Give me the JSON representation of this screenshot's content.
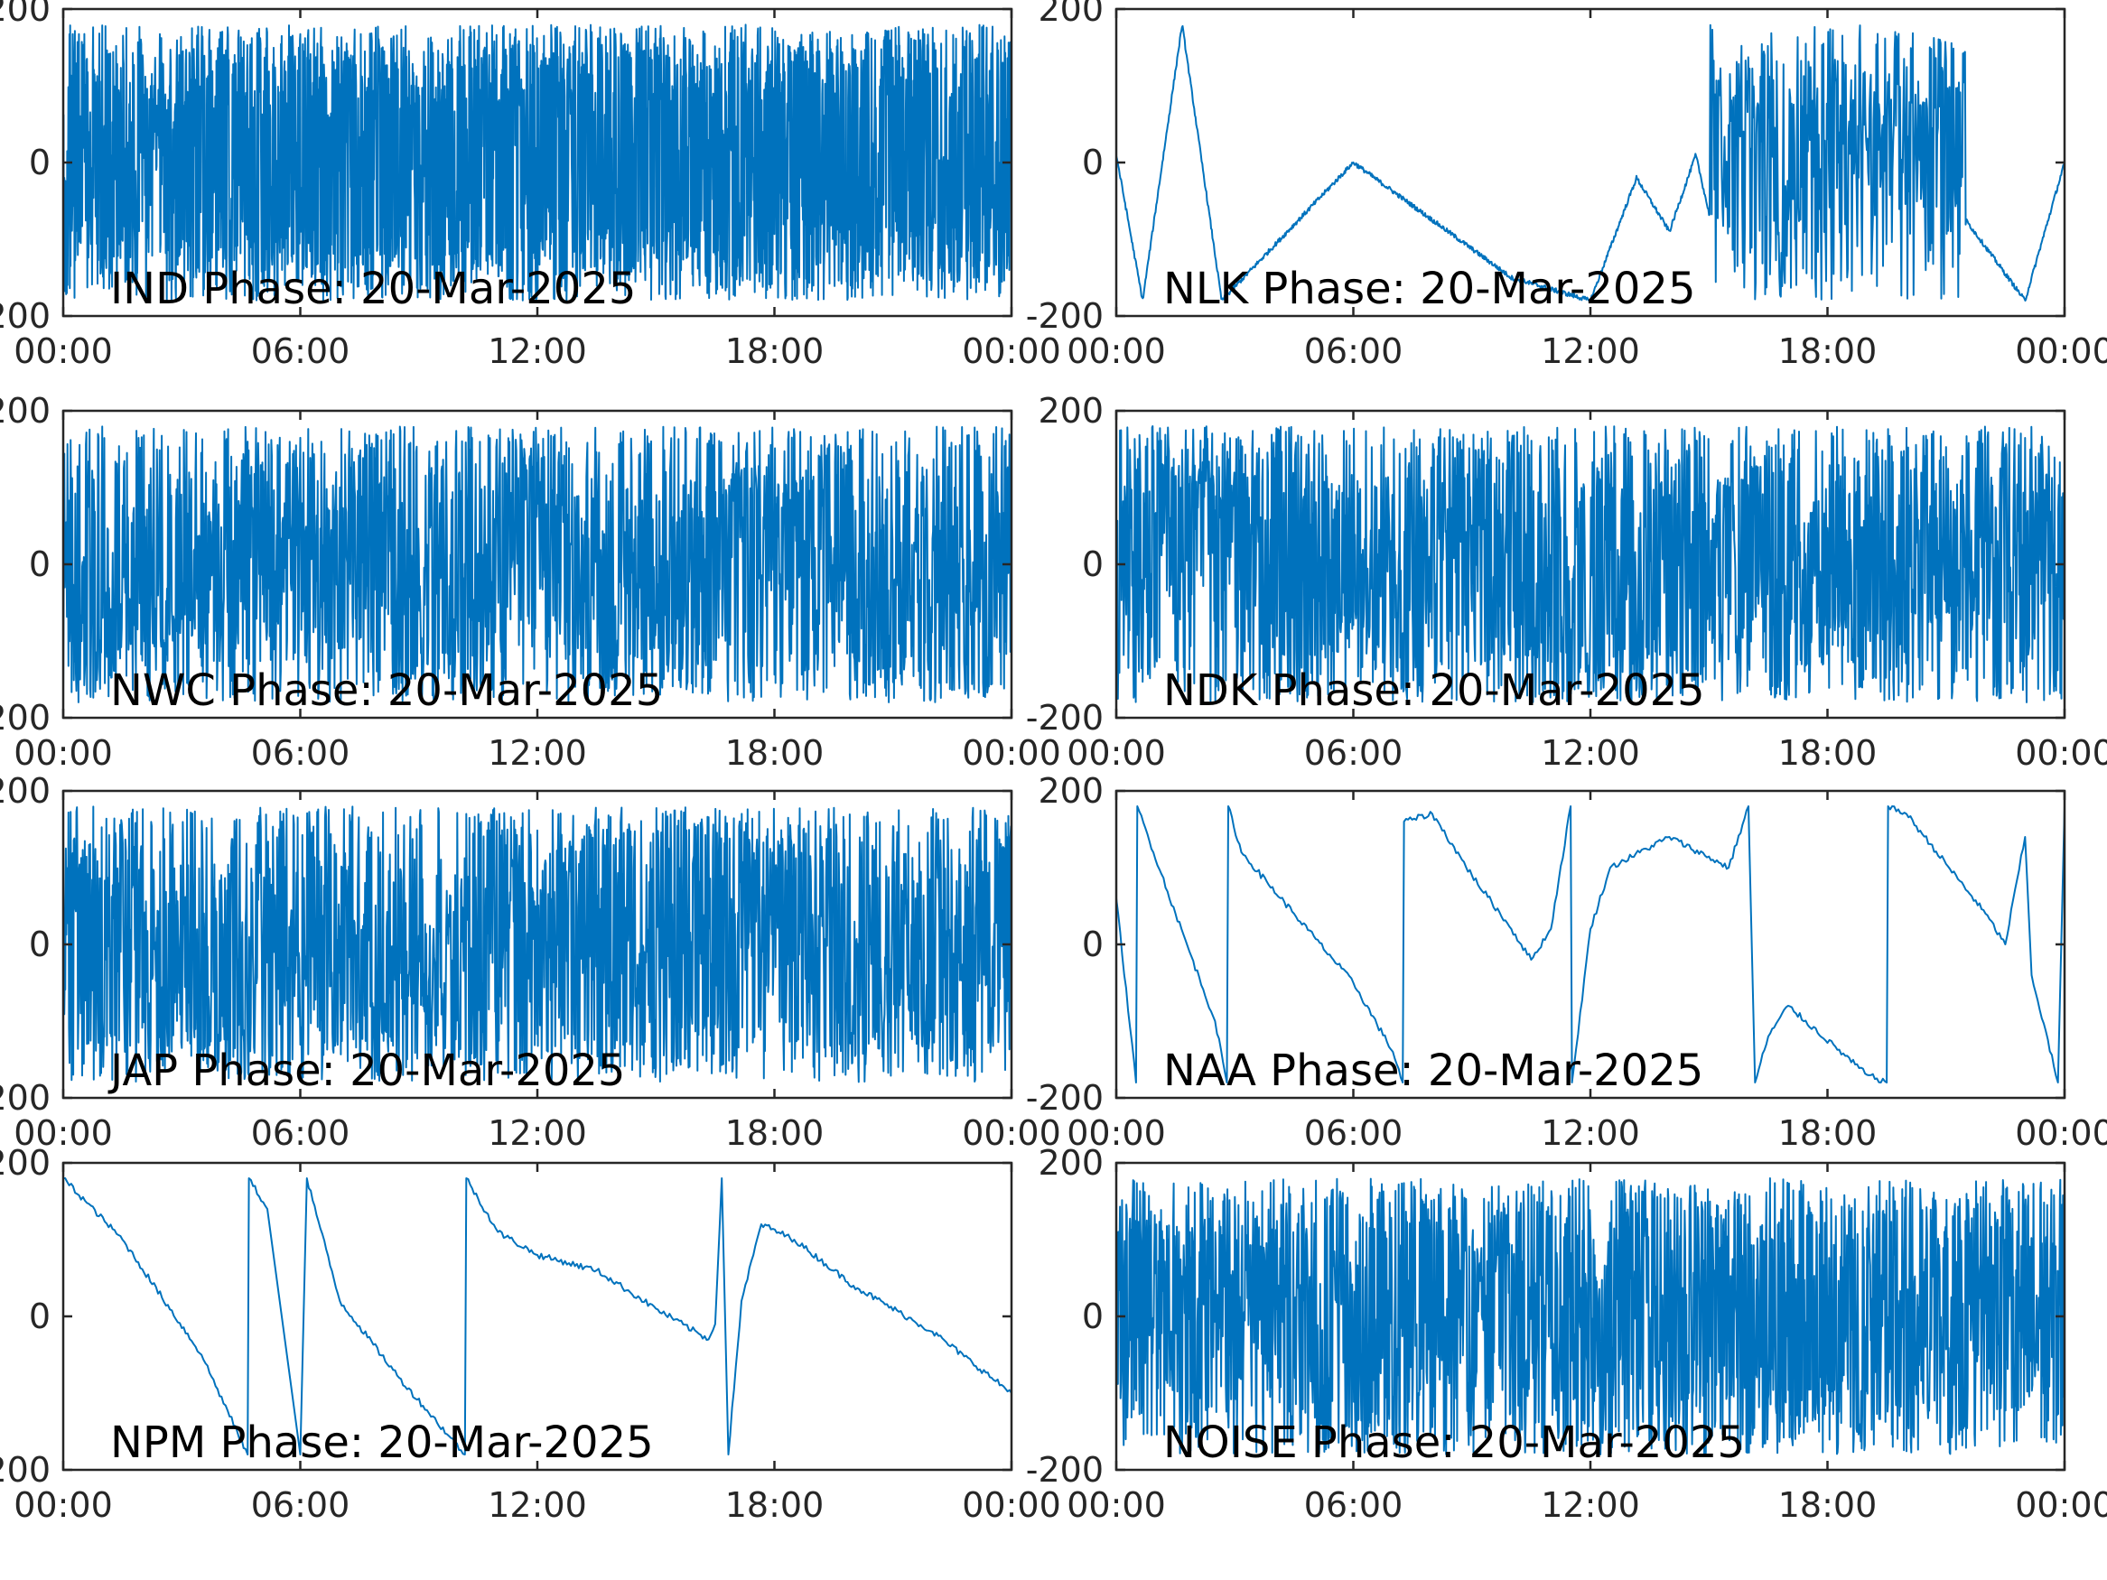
{
  "chart_data": [
    {
      "type": "line",
      "title": "IND Phase: 20-Mar-2025",
      "xlabel": "",
      "ylabel": "",
      "x_range": [
        "00:00",
        "24:00"
      ],
      "xticks": [
        "00:00",
        "06:00",
        "12:00",
        "18:00",
        "00:00"
      ],
      "ylim": [
        -200,
        200
      ],
      "yticks": [
        "-200",
        "0",
        "200"
      ],
      "series": [
        {
          "color": "#0072BD",
          "pattern": "wrap",
          "points": [
            [
              "00:00",
              150
            ],
            [
              "00:30",
              -180
            ],
            [
              "01:15",
              175
            ],
            [
              "02:00",
              -175
            ],
            [
              "03:00",
              -20
            ],
            [
              "06:00",
              10
            ],
            [
              "12:00",
              -5
            ],
            [
              "18:00",
              0
            ],
            [
              "24:00",
              5
            ]
          ]
        }
      ]
    },
    {
      "type": "line",
      "title": "NLK Phase: 20-Mar-2025",
      "xlabel": "",
      "ylabel": "",
      "x_range": [
        "00:00",
        "24:00"
      ],
      "xticks": [
        "00:00",
        "06:00",
        "12:00",
        "18:00",
        "00:00"
      ],
      "ylim": [
        -200,
        200
      ],
      "yticks": [
        "-200",
        "0",
        "200"
      ],
      "series": [
        {
          "color": "#0072BD",
          "pattern": "sawtooth",
          "points": [
            [
              "00:00",
              10
            ],
            [
              "00:40",
              -180
            ],
            [
              "01:40",
              180
            ],
            [
              "02:40",
              -180
            ],
            [
              "06:00",
              0
            ],
            [
              "10:00",
              -150
            ],
            [
              "12:00",
              -180
            ],
            [
              "13:10",
              -20
            ],
            [
              "14:00",
              -90
            ],
            [
              "14:40",
              10
            ],
            [
              "15:30",
              -180
            ],
            [
              "17:00",
              80
            ],
            [
              "19:00",
              -180
            ],
            [
              "21:00",
              -40
            ],
            [
              "23:00",
              -180
            ],
            [
              "24:00",
              0
            ]
          ]
        }
      ]
    },
    {
      "type": "line",
      "title": "NWC Phase: 20-Mar-2025",
      "xlabel": "",
      "ylabel": "",
      "x_range": [
        "00:00",
        "24:00"
      ],
      "xticks": [
        "00:00",
        "06:00",
        "12:00",
        "18:00",
        "00:00"
      ],
      "ylim": [
        -200,
        200
      ],
      "yticks": [
        "-200",
        "0",
        "200"
      ],
      "series": [
        {
          "color": "#0072BD",
          "pattern": "wrap",
          "points": [
            [
              "00:00",
              0
            ],
            [
              "03:00",
              120
            ],
            [
              "06:00",
              -150
            ],
            [
              "09:00",
              60
            ],
            [
              "12:00",
              -40
            ],
            [
              "15:00",
              90
            ],
            [
              "18:00",
              -120
            ],
            [
              "21:00",
              40
            ],
            [
              "24:00",
              0
            ]
          ]
        }
      ]
    },
    {
      "type": "line",
      "title": "NDK Phase: 20-Mar-2025",
      "xlabel": "",
      "ylabel": "",
      "x_range": [
        "00:00",
        "24:00"
      ],
      "xticks": [
        "00:00",
        "06:00",
        "12:00",
        "18:00",
        "00:00"
      ],
      "ylim": [
        -200,
        200
      ],
      "yticks": [
        "-200",
        "0",
        "200"
      ],
      "series": [
        {
          "color": "#0072BD",
          "pattern": "wrap",
          "points": [
            [
              "00:00",
              0
            ],
            [
              "03:00",
              -90
            ],
            [
              "06:00",
              100
            ],
            [
              "09:00",
              -60
            ],
            [
              "12:00",
              50
            ],
            [
              "15:00",
              -120
            ],
            [
              "18:00",
              80
            ],
            [
              "21:00",
              -30
            ],
            [
              "24:00",
              0
            ]
          ]
        }
      ]
    },
    {
      "type": "line",
      "title": "JAP Phase: 20-Mar-2025",
      "xlabel": "",
      "ylabel": "",
      "x_range": [
        "00:00",
        "24:00"
      ],
      "xticks": [
        "00:00",
        "06:00",
        "12:00",
        "18:00",
        "00:00"
      ],
      "ylim": [
        -200,
        200
      ],
      "yticks": [
        "-200",
        "0",
        "200"
      ],
      "series": [
        {
          "color": "#0072BD",
          "pattern": "wrap",
          "points": [
            [
              "00:00",
              -100
            ],
            [
              "03:00",
              70
            ],
            [
              "06:00",
              -20
            ],
            [
              "09:00",
              130
            ],
            [
              "12:00",
              -110
            ],
            [
              "15:00",
              20
            ],
            [
              "18:00",
              -60
            ],
            [
              "21:00",
              110
            ],
            [
              "24:00",
              -40
            ]
          ]
        }
      ]
    },
    {
      "type": "line",
      "title": "NAA Phase: 20-Mar-2025",
      "xlabel": "",
      "ylabel": "",
      "x_range": [
        "00:00",
        "24:00"
      ],
      "xticks": [
        "00:00",
        "06:00",
        "12:00",
        "18:00",
        "00:00"
      ],
      "ylim": [
        -200,
        200
      ],
      "yticks": [
        "-200",
        "0",
        "200"
      ],
      "series": [
        {
          "color": "#0072BD",
          "pattern": "trace",
          "points": [
            [
              "00:00",
              60
            ],
            [
              "00:30",
              -180
            ],
            [
              "00:32",
              180
            ],
            [
              "01:30",
              40
            ],
            [
              "02:30",
              -100
            ],
            [
              "02:48",
              -180
            ],
            [
              "02:50",
              180
            ],
            [
              "03:10",
              120
            ],
            [
              "04:30",
              40
            ],
            [
              "06:00",
              -50
            ],
            [
              "07:00",
              -140
            ],
            [
              "07:15",
              -180
            ],
            [
              "07:17",
              160
            ],
            [
              "08:00",
              170
            ],
            [
              "09:00",
              90
            ],
            [
              "10:00",
              20
            ],
            [
              "10:30",
              -20
            ],
            [
              "11:00",
              20
            ],
            [
              "11:30",
              180
            ],
            [
              "11:32",
              -180
            ],
            [
              "12:00",
              20
            ],
            [
              "12:30",
              100
            ],
            [
              "14:00",
              140
            ],
            [
              "15:30",
              100
            ],
            [
              "16:00",
              180
            ],
            [
              "16:10",
              -180
            ],
            [
              "16:30",
              -120
            ],
            [
              "17:00",
              -80
            ],
            [
              "19:00",
              -170
            ],
            [
              "19:30",
              -180
            ],
            [
              "19:32",
              180
            ],
            [
              "20:00",
              170
            ],
            [
              "22:00",
              40
            ],
            [
              "22:30",
              0
            ],
            [
              "23:00",
              140
            ],
            [
              "23:10",
              -40
            ],
            [
              "23:50",
              -180
            ],
            [
              "24:00",
              180
            ]
          ]
        }
      ]
    },
    {
      "type": "line",
      "title": "NPM Phase: 20-Mar-2025",
      "xlabel": "",
      "ylabel": "",
      "x_range": [
        "00:00",
        "24:00"
      ],
      "xticks": [
        "00:00",
        "06:00",
        "12:00",
        "18:00",
        "00:00"
      ],
      "ylim": [
        -200,
        200
      ],
      "yticks": [
        "-200",
        "0",
        "200"
      ],
      "series": [
        {
          "color": "#0072BD",
          "pattern": "trace",
          "points": [
            [
              "00:00",
              180
            ],
            [
              "01:30",
              100
            ],
            [
              "03:30",
              -50
            ],
            [
              "04:40",
              -180
            ],
            [
              "04:42",
              180
            ],
            [
              "05:10",
              140
            ],
            [
              "06:00",
              -180
            ],
            [
              "06:10",
              180
            ],
            [
              "07:00",
              20
            ],
            [
              "08:30",
              -80
            ],
            [
              "10:10",
              -180
            ],
            [
              "10:12",
              180
            ],
            [
              "11:00",
              110
            ],
            [
              "12:00",
              80
            ],
            [
              "13:30",
              60
            ],
            [
              "15:00",
              10
            ],
            [
              "16:20",
              -30
            ],
            [
              "16:30",
              -10
            ],
            [
              "16:40",
              180
            ],
            [
              "16:50",
              -180
            ],
            [
              "17:10",
              20
            ],
            [
              "17:40",
              120
            ],
            [
              "18:30",
              100
            ],
            [
              "20:00",
              40
            ],
            [
              "22:00",
              -20
            ],
            [
              "24:00",
              -100
            ]
          ]
        }
      ]
    },
    {
      "type": "line",
      "title": "NOISE Phase: 20-Mar-2025",
      "xlabel": "",
      "ylabel": "",
      "x_range": [
        "00:00",
        "24:00"
      ],
      "xticks": [
        "00:00",
        "06:00",
        "12:00",
        "18:00",
        "00:00"
      ],
      "ylim": [
        -200,
        200
      ],
      "yticks": [
        "-200",
        "0",
        "200"
      ],
      "series": [
        {
          "color": "#0072BD",
          "pattern": "wrap",
          "points": [
            [
              "00:00",
              -40
            ],
            [
              "02:30",
              -130
            ],
            [
              "03:30",
              -100
            ],
            [
              "06:00",
              40
            ],
            [
              "09:00",
              -90
            ],
            [
              "12:00",
              30
            ],
            [
              "15:00",
              -20
            ],
            [
              "18:00",
              70
            ],
            [
              "21:00",
              -60
            ],
            [
              "24:00",
              0
            ]
          ]
        }
      ]
    }
  ]
}
